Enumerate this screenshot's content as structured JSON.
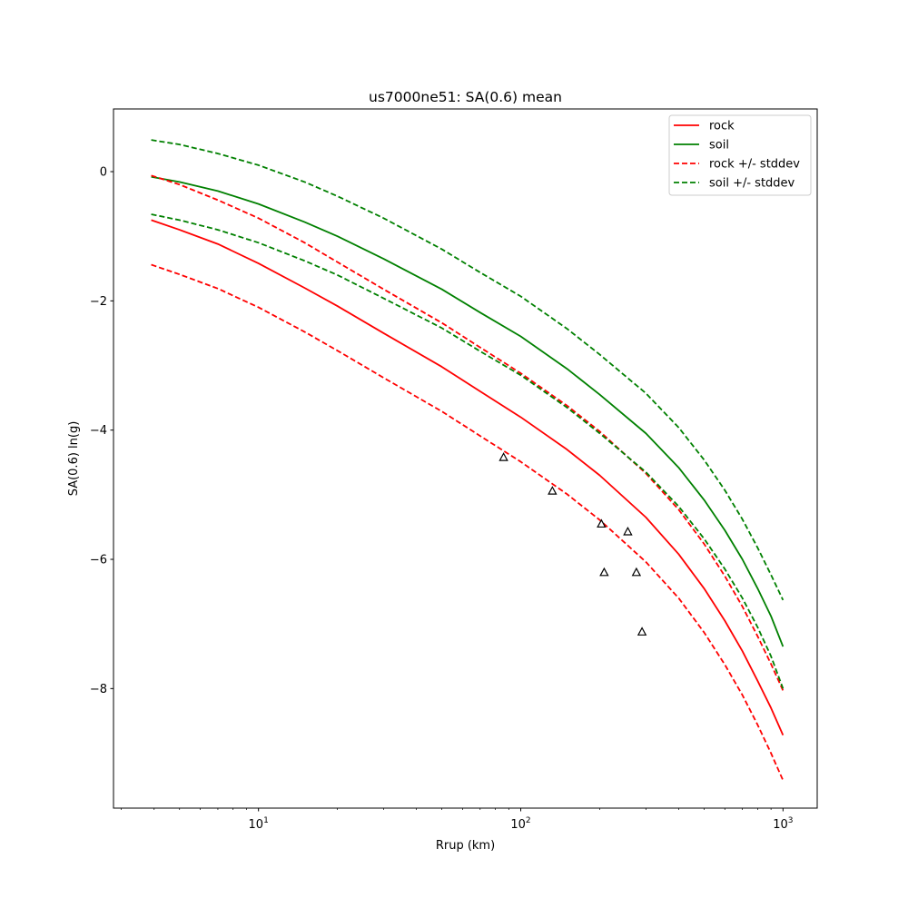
{
  "chart_data": {
    "type": "line",
    "title": "us7000ne51: SA(0.6) mean",
    "xlabel": "Rrup (km)",
    "ylabel": "SA(0.6) ln(g)",
    "xscale": "log",
    "xlim": [
      2.8,
      1350
    ],
    "ylim": [
      -9.85,
      0.97
    ],
    "xticks": [
      10,
      100,
      1000
    ],
    "xtick_labels": [
      {
        "base": "10",
        "exp": "1"
      },
      {
        "base": "10",
        "exp": "2"
      },
      {
        "base": "10",
        "exp": "3"
      }
    ],
    "yticks": [
      0,
      -2,
      -4,
      -6,
      -8
    ],
    "ytick_labels": [
      "0",
      "−2",
      "−4",
      "−6",
      "−8"
    ],
    "grid": false,
    "legend_position": "top-right",
    "x": [
      3.9,
      5,
      7,
      10,
      15,
      20,
      30,
      50,
      70,
      100,
      150,
      200,
      300,
      400,
      500,
      600,
      700,
      800,
      900,
      1000
    ],
    "series": [
      {
        "name": "rock",
        "color": "#ff0000",
        "style": "solid",
        "values": [
          -0.75,
          -0.9,
          -1.12,
          -1.42,
          -1.8,
          -2.08,
          -2.5,
          -3.02,
          -3.4,
          -3.8,
          -4.3,
          -4.7,
          -5.35,
          -5.92,
          -6.45,
          -6.95,
          -7.42,
          -7.88,
          -8.3,
          -8.72
        ]
      },
      {
        "name": "soil",
        "color": "#008000",
        "style": "solid",
        "values": [
          -0.08,
          -0.16,
          -0.3,
          -0.5,
          -0.78,
          -1.0,
          -1.35,
          -1.82,
          -2.18,
          -2.55,
          -3.05,
          -3.45,
          -4.05,
          -4.58,
          -5.08,
          -5.55,
          -6.0,
          -6.45,
          -6.88,
          -7.35
        ]
      },
      {
        "name": "rock +/- stddev",
        "color": "#ff0000",
        "style": "dashed",
        "values": [
          -0.06,
          -0.2,
          -0.44,
          -0.72,
          -1.1,
          -1.4,
          -1.82,
          -2.34,
          -2.72,
          -3.12,
          -3.62,
          -4.02,
          -4.67,
          -5.23,
          -5.76,
          -6.26,
          -6.73,
          -7.19,
          -7.62,
          -8.03
        ]
      },
      {
        "name": "",
        "color": "#ff0000",
        "style": "dashed",
        "values": [
          -1.44,
          -1.59,
          -1.81,
          -2.1,
          -2.48,
          -2.77,
          -3.19,
          -3.71,
          -4.09,
          -4.49,
          -4.99,
          -5.39,
          -6.04,
          -6.6,
          -7.13,
          -7.63,
          -8.1,
          -8.56,
          -9.0,
          -9.42
        ]
      },
      {
        "name": "soil +/- stddev",
        "color": "#008000",
        "style": "dashed",
        "values": [
          0.49,
          0.42,
          0.28,
          0.1,
          -0.16,
          -0.38,
          -0.72,
          -1.2,
          -1.56,
          -1.93,
          -2.43,
          -2.83,
          -3.43,
          -3.96,
          -4.46,
          -4.93,
          -5.38,
          -5.82,
          -6.24,
          -6.63
        ]
      },
      {
        "name": "",
        "color": "#008000",
        "style": "dashed",
        "values": [
          -0.66,
          -0.75,
          -0.9,
          -1.1,
          -1.38,
          -1.6,
          -1.96,
          -2.42,
          -2.78,
          -3.15,
          -3.65,
          -4.05,
          -4.65,
          -5.18,
          -5.68,
          -6.15,
          -6.6,
          -7.05,
          -7.5,
          -8.0
        ]
      }
    ],
    "observations": {
      "marker": "triangle-open",
      "color": "#000000",
      "points": [
        {
          "x": 86,
          "y": -4.42
        },
        {
          "x": 132,
          "y": -4.94
        },
        {
          "x": 203,
          "y": -5.45
        },
        {
          "x": 208,
          "y": -6.2
        },
        {
          "x": 256,
          "y": -5.57
        },
        {
          "x": 276,
          "y": -6.2
        },
        {
          "x": 290,
          "y": -7.12
        }
      ]
    }
  }
}
